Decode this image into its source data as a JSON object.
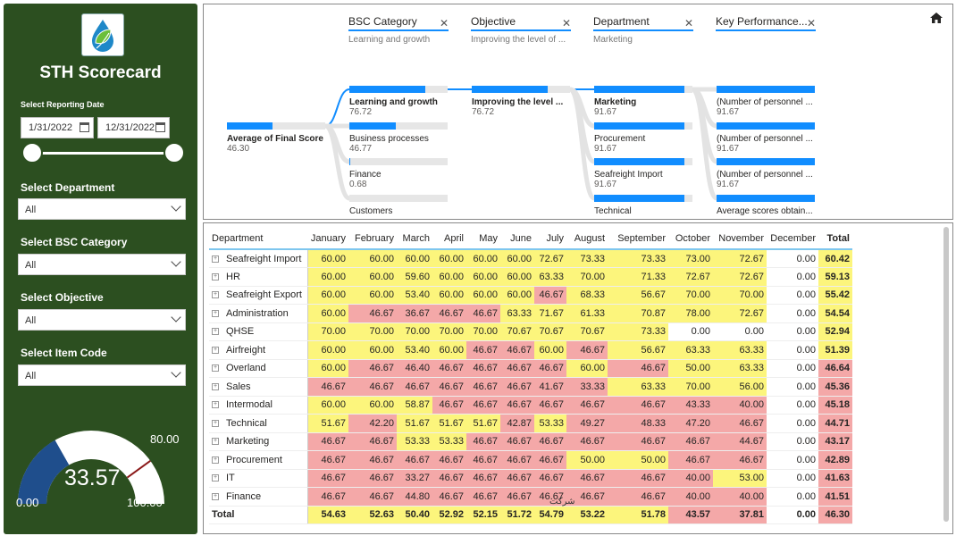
{
  "sidebar": {
    "title": "STH Scorecard",
    "reporting_date_label": "Select Reporting Date",
    "date_start": "1/31/2022",
    "date_end": "12/31/2022",
    "filters": [
      {
        "label": "Select Department",
        "value": "All"
      },
      {
        "label": "Select BSC Category",
        "value": "All"
      },
      {
        "label": "Select Objective",
        "value": "All"
      },
      {
        "label": "Select Item Code",
        "value": "All"
      }
    ],
    "gauge": {
      "value": "33.57",
      "min": "0.00",
      "max": "100.00",
      "target": "80.00",
      "fraction": 0.3357,
      "fill_color": "#1f4e8c",
      "target_color": "#8b1a1a"
    }
  },
  "tree": {
    "breadcrumbs": [
      {
        "title": "BSC Category",
        "sub": "Learning and growth"
      },
      {
        "title": "Objective",
        "sub": "Improving the level of ..."
      },
      {
        "title": "Department",
        "sub": "Marketing"
      },
      {
        "title": "Key Performance...",
        "sub": ""
      }
    ],
    "root": {
      "label": "Average of Final Score",
      "value": "46.30",
      "fraction": 0.46
    },
    "level1": [
      {
        "label": "Learning and growth",
        "value": "76.72",
        "fraction": 0.77
      },
      {
        "label": "Business processes",
        "value": "46.77",
        "fraction": 0.47
      },
      {
        "label": "Finance",
        "value": "0.68",
        "fraction": 0.01
      },
      {
        "label": "Customers",
        "value": "",
        "fraction": 0.0
      }
    ],
    "level2": [
      {
        "label": "Improving the level ...",
        "value": "76.72",
        "fraction": 0.77
      }
    ],
    "level3": [
      {
        "label": "Marketing",
        "value": "91.67",
        "fraction": 0.92
      },
      {
        "label": "Procurement",
        "value": "91.67",
        "fraction": 0.92
      },
      {
        "label": "Seafreight Import",
        "value": "91.67",
        "fraction": 0.92
      },
      {
        "label": "Technical",
        "value": "",
        "fraction": 0.92
      }
    ],
    "level4": [
      {
        "label": "(Number of personnel ...",
        "value": "91.67",
        "fraction": 1.0
      },
      {
        "label": "(Number of personnel ...",
        "value": "91.67",
        "fraction": 1.0
      },
      {
        "label": "(Number of personnel ...",
        "value": "91.67",
        "fraction": 1.0
      },
      {
        "label": "Average scores obtain...",
        "value": "",
        "fraction": 1.0
      }
    ]
  },
  "table": {
    "headers": [
      "Department",
      "January",
      "February",
      "March",
      "April",
      "May",
      "June",
      "July",
      "August",
      "September",
      "October",
      "November",
      "December",
      "Total"
    ],
    "rows": [
      {
        "dept": "Seafreight Import",
        "vals": [
          "60.00",
          "60.00",
          "60.00",
          "60.00",
          "60.00",
          "60.00",
          "72.67",
          "73.33",
          "73.33",
          "73.00",
          "72.67",
          "0.00",
          "60.42"
        ],
        "cls": [
          "y",
          "y",
          "y",
          "y",
          "y",
          "y",
          "y",
          "y",
          "y",
          "y",
          "y",
          "w",
          "y"
        ]
      },
      {
        "dept": "HR",
        "vals": [
          "60.00",
          "60.00",
          "59.60",
          "60.00",
          "60.00",
          "60.00",
          "63.33",
          "70.00",
          "71.33",
          "72.67",
          "72.67",
          "0.00",
          "59.13"
        ],
        "cls": [
          "y",
          "y",
          "y",
          "y",
          "y",
          "y",
          "y",
          "y",
          "y",
          "y",
          "y",
          "w",
          "y"
        ]
      },
      {
        "dept": "Seafreight Export",
        "vals": [
          "60.00",
          "60.00",
          "53.40",
          "60.00",
          "60.00",
          "60.00",
          "46.67",
          "68.33",
          "56.67",
          "70.00",
          "70.00",
          "0.00",
          "55.42"
        ],
        "cls": [
          "y",
          "y",
          "y",
          "y",
          "y",
          "y",
          "r",
          "y",
          "y",
          "y",
          "y",
          "w",
          "y"
        ]
      },
      {
        "dept": "Administration",
        "vals": [
          "60.00",
          "46.67",
          "36.67",
          "46.67",
          "46.67",
          "63.33",
          "71.67",
          "61.33",
          "70.87",
          "78.00",
          "72.67",
          "0.00",
          "54.54"
        ],
        "cls": [
          "y",
          "r",
          "r",
          "r",
          "r",
          "y",
          "y",
          "y",
          "y",
          "y",
          "y",
          "w",
          "y"
        ]
      },
      {
        "dept": "QHSE",
        "vals": [
          "70.00",
          "70.00",
          "70.00",
          "70.00",
          "70.00",
          "70.67",
          "70.67",
          "70.67",
          "73.33",
          "0.00",
          "0.00",
          "0.00",
          "52.94"
        ],
        "cls": [
          "y",
          "y",
          "y",
          "y",
          "y",
          "y",
          "y",
          "y",
          "y",
          "w",
          "w",
          "w",
          "y"
        ]
      },
      {
        "dept": "Airfreight",
        "vals": [
          "60.00",
          "60.00",
          "53.40",
          "60.00",
          "46.67",
          "46.67",
          "60.00",
          "46.67",
          "56.67",
          "63.33",
          "63.33",
          "0.00",
          "51.39"
        ],
        "cls": [
          "y",
          "y",
          "y",
          "y",
          "r",
          "r",
          "y",
          "r",
          "y",
          "y",
          "y",
          "w",
          "y"
        ]
      },
      {
        "dept": "Overland",
        "vals": [
          "60.00",
          "46.67",
          "46.40",
          "46.67",
          "46.67",
          "46.67",
          "46.67",
          "60.00",
          "46.67",
          "50.00",
          "63.33",
          "0.00",
          "46.64"
        ],
        "cls": [
          "y",
          "r",
          "r",
          "r",
          "r",
          "r",
          "r",
          "y",
          "r",
          "y",
          "y",
          "w",
          "r"
        ]
      },
      {
        "dept": "Sales",
        "vals": [
          "46.67",
          "46.67",
          "46.67",
          "46.67",
          "46.67",
          "46.67",
          "41.67",
          "33.33",
          "63.33",
          "70.00",
          "56.00",
          "0.00",
          "45.36"
        ],
        "cls": [
          "r",
          "r",
          "r",
          "r",
          "r",
          "r",
          "r",
          "r",
          "y",
          "y",
          "y",
          "w",
          "r"
        ]
      },
      {
        "dept": "Intermodal",
        "vals": [
          "60.00",
          "60.00",
          "58.87",
          "46.67",
          "46.67",
          "46.67",
          "46.67",
          "46.67",
          "46.67",
          "43.33",
          "40.00",
          "0.00",
          "45.18"
        ],
        "cls": [
          "y",
          "y",
          "y",
          "r",
          "r",
          "r",
          "r",
          "r",
          "r",
          "r",
          "r",
          "w",
          "r"
        ]
      },
      {
        "dept": "Technical",
        "vals": [
          "51.67",
          "42.20",
          "51.67",
          "51.67",
          "51.67",
          "42.87",
          "53.33",
          "49.27",
          "48.33",
          "47.20",
          "46.67",
          "0.00",
          "44.71"
        ],
        "cls": [
          "y",
          "r",
          "y",
          "y",
          "y",
          "r",
          "y",
          "r",
          "r",
          "r",
          "r",
          "w",
          "r"
        ]
      },
      {
        "dept": "Marketing",
        "vals": [
          "46.67",
          "46.67",
          "53.33",
          "53.33",
          "46.67",
          "46.67",
          "46.67",
          "46.67",
          "46.67",
          "46.67",
          "44.67",
          "0.00",
          "43.17"
        ],
        "cls": [
          "r",
          "r",
          "y",
          "y",
          "r",
          "r",
          "r",
          "r",
          "r",
          "r",
          "r",
          "w",
          "r"
        ]
      },
      {
        "dept": "Procurement",
        "vals": [
          "46.67",
          "46.67",
          "46.67",
          "46.67",
          "46.67",
          "46.67",
          "46.67",
          "50.00",
          "50.00",
          "46.67",
          "46.67",
          "0.00",
          "42.89"
        ],
        "cls": [
          "r",
          "r",
          "r",
          "r",
          "r",
          "r",
          "r",
          "y",
          "y",
          "r",
          "r",
          "w",
          "r"
        ]
      },
      {
        "dept": "IT",
        "vals": [
          "46.67",
          "46.67",
          "33.27",
          "46.67",
          "46.67",
          "46.67",
          "46.67",
          "46.67",
          "46.67",
          "40.00",
          "53.00",
          "0.00",
          "41.63"
        ],
        "cls": [
          "r",
          "r",
          "r",
          "r",
          "r",
          "r",
          "r",
          "r",
          "r",
          "r",
          "y",
          "w",
          "r"
        ]
      },
      {
        "dept": "Finance",
        "vals": [
          "46.67",
          "46.67",
          "44.80",
          "46.67",
          "46.67",
          "46.67",
          "46.67",
          "46.67",
          "46.67",
          "40.00",
          "40.00",
          "0.00",
          "41.51"
        ],
        "cls": [
          "r",
          "r",
          "r",
          "r",
          "r",
          "r",
          "r",
          "r",
          "r",
          "r",
          "r",
          "w",
          "r"
        ]
      }
    ],
    "total_row": {
      "label": "Total",
      "vals": [
        "54.63",
        "52.63",
        "50.40",
        "52.92",
        "52.15",
        "51.72",
        "54.79",
        "53.22",
        "51.78",
        "43.57",
        "37.81",
        "0.00",
        "46.30"
      ],
      "cls": [
        "y",
        "y",
        "y",
        "y",
        "y",
        "y",
        "y",
        "y",
        "y",
        "r",
        "r",
        "w",
        "r"
      ]
    }
  },
  "watermark_text": "شرکت"
}
